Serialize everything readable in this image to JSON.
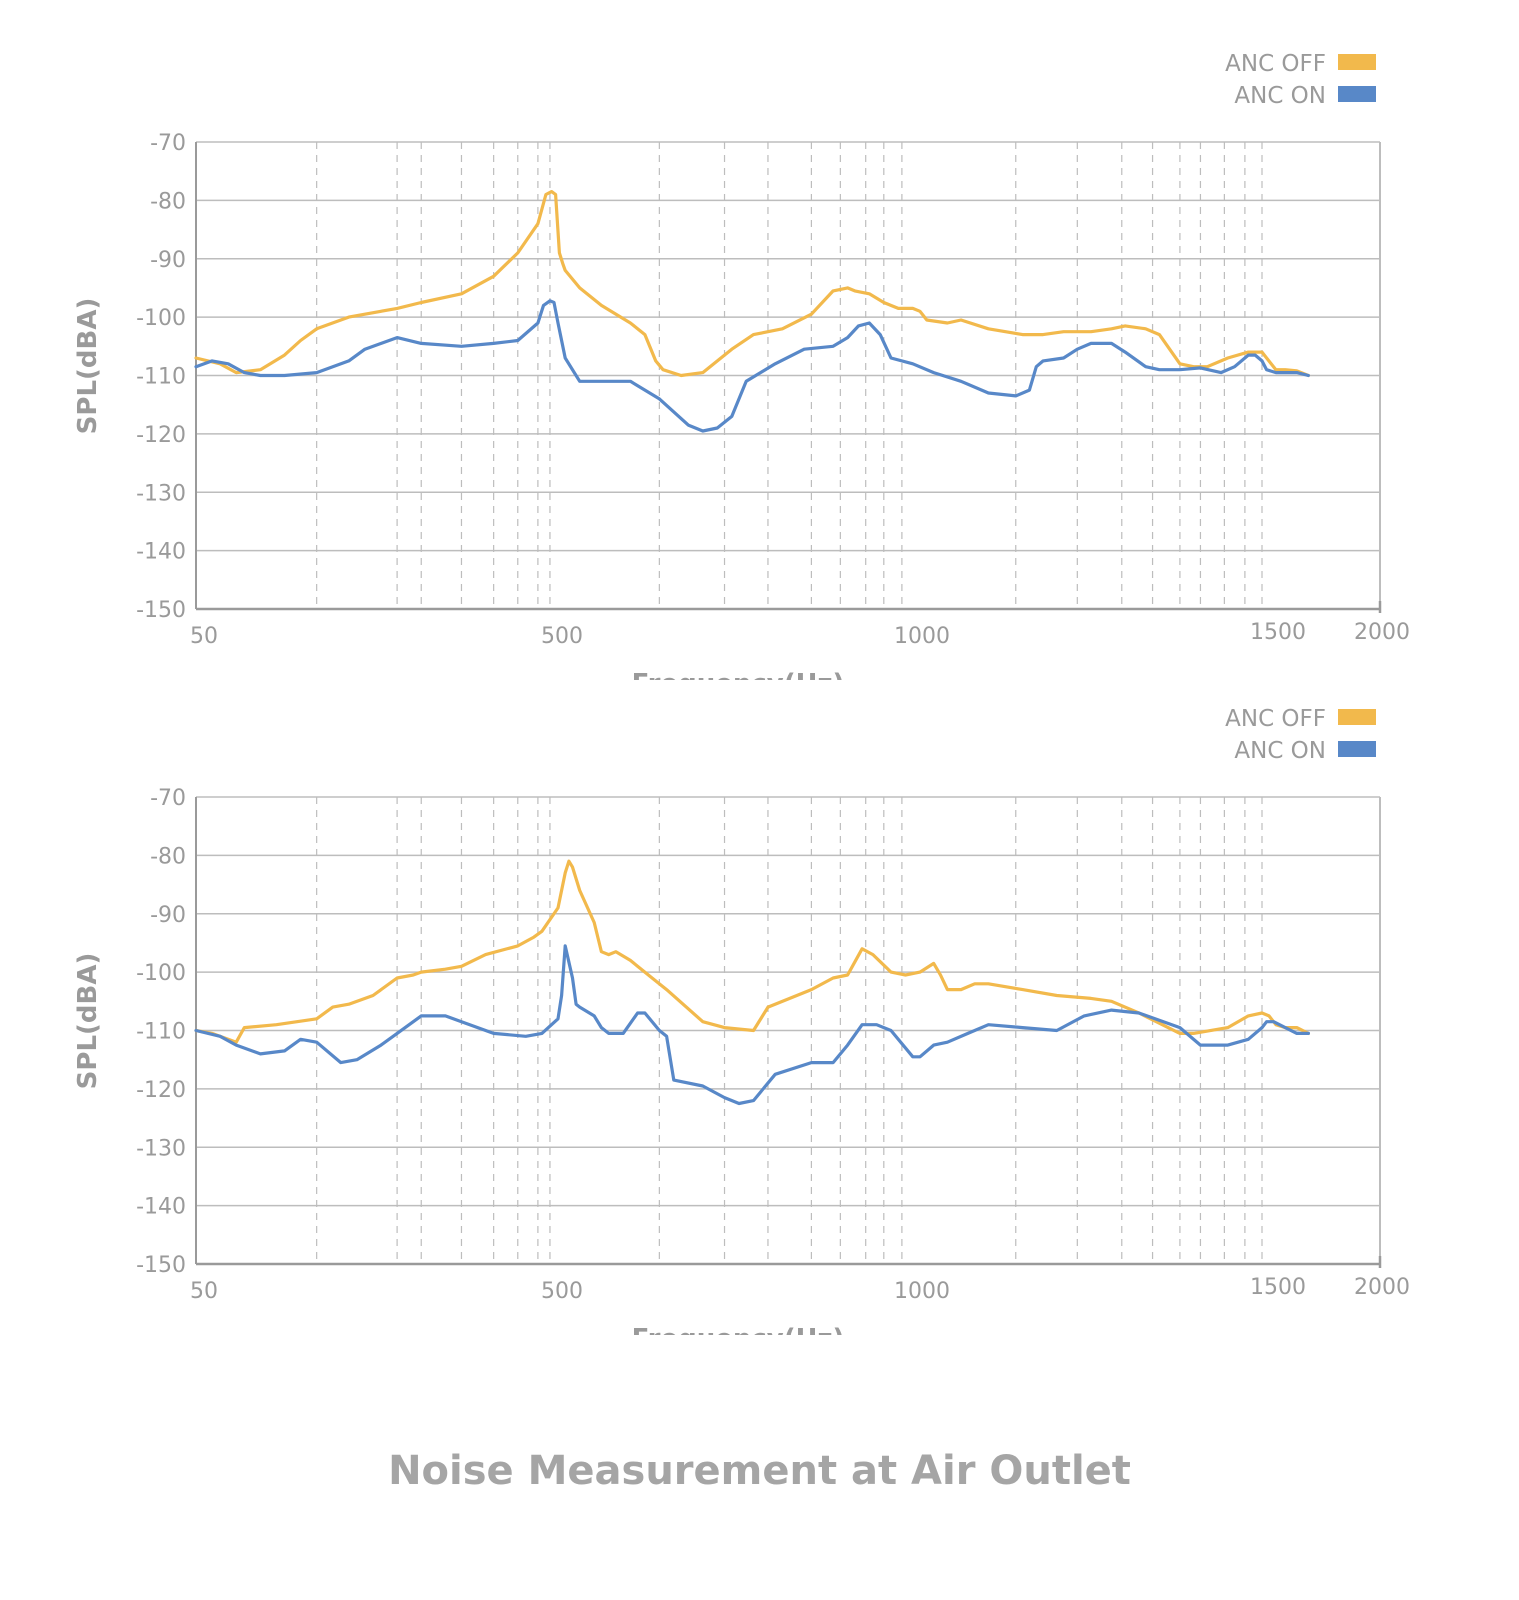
{
  "figure_title": "Noise Measurement at Air Outlet",
  "colors": {
    "anc_off": "#F2B94C",
    "anc_on": "#5888C8",
    "axis": "#9a9a9a",
    "grid": "#bdbdbd",
    "text": "#9a9a9a"
  },
  "chart_data": [
    {
      "type": "line",
      "title": "",
      "xlabel": "Frequency(Hz)",
      "ylabel": "SPL(dBA)",
      "ylim": [
        -150,
        -70
      ],
      "yticks": [
        -70,
        -80,
        -90,
        -100,
        -110,
        -120,
        -130,
        -140,
        -150
      ],
      "x_tick_labels": [
        "50",
        "500",
        "1000",
        "1500",
        "2000"
      ],
      "x_tick_values": [
        50,
        500,
        1000,
        1500,
        2000
      ],
      "vertical_grid_lines": [
        200,
        300,
        330,
        380,
        420,
        450,
        475,
        490,
        640,
        730,
        790,
        850,
        890,
        925,
        950,
        975,
        1140,
        1230,
        1295,
        1340,
        1380,
        1410,
        1445,
        1475,
        1500
      ],
      "legend": {
        "position": "top-right",
        "entries": [
          "ANC OFF",
          "ANC ON"
        ]
      },
      "series": [
        {
          "name": "ANC OFF",
          "color": "#F2B94C",
          "x": [
            50,
            80,
            100,
            130,
            160,
            180,
            200,
            240,
            260,
            300,
            330,
            380,
            420,
            450,
            475,
            485,
            492,
            497,
            502,
            507,
            510,
            530,
            560,
            600,
            620,
            635,
            645,
            670,
            700,
            730,
            740,
            770,
            790,
            810,
            850,
            880,
            900,
            910,
            930,
            950,
            970,
            990,
            1000,
            1010,
            1040,
            1060,
            1100,
            1150,
            1180,
            1210,
            1250,
            1280,
            1300,
            1330,
            1350,
            1380,
            1400,
            1420,
            1450,
            1480,
            1500,
            1520,
            1560,
            1600,
            1650,
            1700
          ],
          "y": [
            -107,
            -108,
            -109.5,
            -109,
            -106.5,
            -104,
            -102,
            -100,
            -99.5,
            -98.5,
            -97.5,
            -96,
            -93,
            -89,
            -84,
            -79,
            -78.5,
            -79,
            -89,
            -91,
            -92,
            -95,
            -98,
            -101,
            -103,
            -107.5,
            -109,
            -110,
            -109.5,
            -106.5,
            -105.5,
            -103,
            -102.5,
            -102,
            -99.5,
            -95.5,
            -95,
            -95.5,
            -96,
            -97.5,
            -98.5,
            -98.5,
            -99,
            -100.5,
            -101,
            -100.5,
            -102,
            -103,
            -103,
            -102.5,
            -102.5,
            -102,
            -101.5,
            -102,
            -103,
            -108,
            -108.5,
            -108.5,
            -107,
            -106,
            -106,
            -107,
            -109,
            -109,
            -109.2,
            -110
          ]
        },
        {
          "name": "ANC ON",
          "color": "#5888C8",
          "x": [
            50,
            70,
            90,
            110,
            130,
            160,
            200,
            240,
            260,
            300,
            330,
            380,
            420,
            450,
            475,
            482,
            490,
            495,
            500,
            505,
            510,
            530,
            560,
            600,
            640,
            680,
            700,
            720,
            740,
            760,
            800,
            840,
            880,
            900,
            915,
            930,
            945,
            960,
            990,
            1020,
            1060,
            1100,
            1140,
            1160,
            1170,
            1180,
            1210,
            1230,
            1250,
            1280,
            1300,
            1330,
            1350,
            1380,
            1410,
            1440,
            1460,
            1480,
            1490,
            1500,
            1520,
            1560,
            1600,
            1650,
            1700
          ],
          "y": [
            -108.5,
            -107.5,
            -108,
            -109.5,
            -110,
            -110,
            -109.5,
            -107.5,
            -105.5,
            -103.5,
            -104.5,
            -105,
            -104.5,
            -104,
            -101,
            -98,
            -97.2,
            -97.5,
            -101,
            -104,
            -107,
            -111,
            -111,
            -111,
            -114,
            -118.5,
            -119.5,
            -119,
            -117,
            -111,
            -108,
            -105.5,
            -105,
            -103.5,
            -101.5,
            -101,
            -103,
            -107,
            -108,
            -109.5,
            -111,
            -113,
            -113.5,
            -112.5,
            -108.5,
            -107.5,
            -107,
            -105.5,
            -104.5,
            -104.5,
            -106,
            -108.5,
            -109,
            -109,
            -108.7,
            -109.5,
            -108.5,
            -106.5,
            -106.5,
            -107.5,
            -109,
            -109.5,
            -109.5,
            -109.5,
            -110
          ]
        }
      ]
    },
    {
      "type": "line",
      "title": "",
      "xlabel": "Frequency(Hz)",
      "ylabel": "SPL(dBA)",
      "ylim": [
        -150,
        -70
      ],
      "yticks": [
        -70,
        -80,
        -90,
        -100,
        -110,
        -120,
        -130,
        -140,
        -150
      ],
      "x_tick_labels": [
        "50",
        "500",
        "1000",
        "1500",
        "2000"
      ],
      "x_tick_values": [
        50,
        500,
        1000,
        1500,
        2000
      ],
      "vertical_grid_lines": [
        200,
        300,
        330,
        380,
        420,
        450,
        475,
        490,
        640,
        730,
        790,
        850,
        890,
        925,
        950,
        975,
        1140,
        1230,
        1295,
        1340,
        1380,
        1410,
        1445,
        1475,
        1500
      ],
      "legend": {
        "position": "top-right",
        "entries": [
          "ANC OFF",
          "ANC ON"
        ]
      },
      "series": [
        {
          "name": "ANC OFF",
          "color": "#F2B94C",
          "x": [
            50,
            70,
            90,
            100,
            110,
            150,
            200,
            220,
            240,
            270,
            300,
            320,
            330,
            360,
            380,
            410,
            450,
            470,
            480,
            500,
            510,
            515,
            520,
            530,
            550,
            560,
            570,
            580,
            600,
            630,
            650,
            700,
            730,
            770,
            790,
            820,
            850,
            880,
            900,
            920,
            935,
            960,
            980,
            1000,
            1020,
            1030,
            1040,
            1060,
            1080,
            1100,
            1150,
            1200,
            1250,
            1280,
            1320,
            1380,
            1400,
            1450,
            1480,
            1500,
            1530,
            1560,
            1600,
            1650,
            1700
          ],
          "y": [
            -110,
            -110.5,
            -111.5,
            -112,
            -109.5,
            -109,
            -108,
            -106,
            -105.5,
            -104,
            -101,
            -100.5,
            -100,
            -99.5,
            -99,
            -97,
            -95.5,
            -94,
            -93,
            -89,
            -83,
            -81,
            -82,
            -86,
            -91.5,
            -96.5,
            -97,
            -96.5,
            -98,
            -101,
            -103,
            -108.5,
            -109.5,
            -110,
            -106,
            -104.5,
            -103,
            -101,
            -100.5,
            -96,
            -97,
            -100,
            -100.5,
            -100,
            -98.5,
            -100.5,
            -103,
            -103,
            -102,
            -102,
            -103,
            -104,
            -104.5,
            -105,
            -107,
            -110.5,
            -110.5,
            -109.5,
            -107.5,
            -107,
            -107.5,
            -109,
            -109.5,
            -109.5,
            -110.5
          ]
        },
        {
          "name": "ANC ON",
          "color": "#5888C8",
          "x": [
            50,
            80,
            100,
            130,
            160,
            180,
            200,
            230,
            250,
            280,
            300,
            330,
            360,
            380,
            420,
            460,
            480,
            500,
            505,
            510,
            520,
            525,
            530,
            550,
            560,
            570,
            590,
            610,
            620,
            640,
            650,
            660,
            700,
            730,
            750,
            770,
            800,
            850,
            880,
            900,
            920,
            940,
            960,
            990,
            1000,
            1020,
            1040,
            1070,
            1100,
            1150,
            1200,
            1240,
            1280,
            1320,
            1380,
            1410,
            1450,
            1480,
            1500,
            1520,
            1550,
            1600,
            1650,
            1700
          ],
          "y": [
            -110,
            -111,
            -112.5,
            -114,
            -113.5,
            -111.5,
            -112,
            -115.5,
            -115,
            -112.5,
            -110.5,
            -107.5,
            -107.5,
            -108.5,
            -110.5,
            -111,
            -110.5,
            -108,
            -104,
            -95.5,
            -101,
            -105.5,
            -106,
            -107.5,
            -109.5,
            -110.5,
            -110.5,
            -107,
            -107,
            -110,
            -111,
            -118.5,
            -119.5,
            -121.5,
            -122.5,
            -122,
            -117.5,
            -115.5,
            -115.5,
            -112.5,
            -109,
            -109,
            -110,
            -114.5,
            -114.5,
            -112.5,
            -112,
            -110.5,
            -109,
            -109.5,
            -110,
            -107.5,
            -106.5,
            -107,
            -109.5,
            -112.5,
            -112.5,
            -111.5,
            -109.5,
            -108.5,
            -108.5,
            -109.5,
            -110.5,
            -110.5
          ]
        }
      ]
    }
  ]
}
